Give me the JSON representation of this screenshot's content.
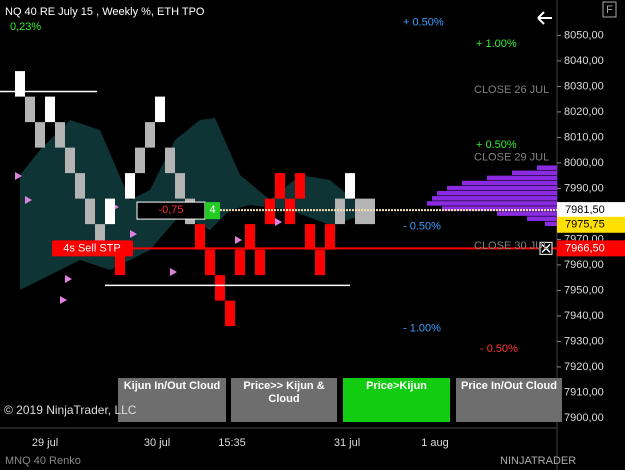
{
  "header": {
    "title": "NQ 40 RE July 15 , Weekly %, ETH TPO",
    "change": "0,23%"
  },
  "chart_data": {
    "type": "renko",
    "ylim": [
      7897,
      8058
    ],
    "yticks": [
      {
        "value": 8050,
        "label": "8050,00"
      },
      {
        "value": 8040,
        "label": "8040,00"
      },
      {
        "value": 8030,
        "label": "8030,00"
      },
      {
        "value": 8020,
        "label": "8020,00"
      },
      {
        "value": 8010,
        "label": "8010,00"
      },
      {
        "value": 8000,
        "label": "8000,00"
      },
      {
        "value": 7990,
        "label": "7990,00"
      },
      {
        "value": 7980,
        "label": "7980,00"
      },
      {
        "value": 7970,
        "label": "7970,00"
      },
      {
        "value": 7960,
        "label": "7960,00"
      },
      {
        "value": 7950,
        "label": "7950,00"
      },
      {
        "value": 7940,
        "label": "7940,00"
      },
      {
        "value": 7930,
        "label": "7930,00"
      },
      {
        "value": 7920,
        "label": "7920,00"
      },
      {
        "value": 7910,
        "label": "7910,00"
      },
      {
        "value": 7900,
        "label": "7900,00"
      }
    ],
    "x_labels": [
      "29 jul",
      "30 jul",
      "15:35",
      "31 jul",
      "1 aug"
    ],
    "bricks": [
      {
        "low": 8026,
        "high": 8036,
        "color": "#ffffff"
      },
      {
        "low": 8016,
        "high": 8026,
        "color": "#b4b4b4"
      },
      {
        "low": 8006,
        "high": 8016,
        "color": "#b4b4b4"
      },
      {
        "low": 8016,
        "high": 8026,
        "color": "#ffffff"
      },
      {
        "low": 8006,
        "high": 8016,
        "color": "#b4b4b4"
      },
      {
        "low": 7996,
        "high": 8006,
        "color": "#b4b4b4"
      },
      {
        "low": 7986,
        "high": 7996,
        "color": "#b4b4b4"
      },
      {
        "low": 7976,
        "high": 7986,
        "color": "#b4b4b4"
      },
      {
        "low": 7966,
        "high": 7976,
        "color": "#b4b4b4"
      },
      {
        "low": 7976,
        "high": 7986,
        "color": "#ffffff"
      },
      {
        "low": 7956,
        "high": 7966,
        "color": "#ff0000"
      },
      {
        "low": 7986,
        "high": 7996,
        "color": "#ffffff"
      },
      {
        "low": 7996,
        "high": 8006,
        "color": "#b4b4b4"
      },
      {
        "low": 8006,
        "high": 8016,
        "color": "#b4b4b4"
      },
      {
        "low": 8016,
        "high": 8026,
        "color": "#ffffff"
      },
      {
        "low": 7996,
        "high": 8006,
        "color": "#b4b4b4"
      },
      {
        "low": 7986,
        "high": 7996,
        "color": "#b4b4b4"
      },
      {
        "low": 7976,
        "high": 7986,
        "color": "#b4b4b4"
      },
      {
        "low": 7966,
        "high": 7976,
        "color": "#ff0000"
      },
      {
        "low": 7956,
        "high": 7966,
        "color": "#ff0000"
      },
      {
        "low": 7946,
        "high": 7956,
        "color": "#ff0000"
      },
      {
        "low": 7936,
        "high": 7946,
        "color": "#ff0000"
      },
      {
        "low": 7956,
        "high": 7966,
        "color": "#ff0000"
      },
      {
        "low": 7966,
        "high": 7976,
        "color": "#ff0000"
      },
      {
        "low": 7956,
        "high": 7966,
        "color": "#ff0000"
      },
      {
        "low": 7976,
        "high": 7986,
        "color": "#ff0000"
      },
      {
        "low": 7986,
        "high": 7996,
        "color": "#ff0000"
      },
      {
        "low": 7976,
        "high": 7986,
        "color": "#ff0000"
      },
      {
        "low": 7986,
        "high": 7996,
        "color": "#ff0000"
      },
      {
        "low": 7966,
        "high": 7976,
        "color": "#ff0000"
      },
      {
        "low": 7956,
        "high": 7966,
        "color": "#ff0000"
      },
      {
        "low": 7966,
        "high": 7976,
        "color": "#ff0000"
      },
      {
        "low": 7976,
        "high": 7986,
        "color": "#b4b4b4"
      },
      {
        "low": 7986,
        "high": 7996,
        "color": "#ffffff"
      },
      {
        "low": 7976,
        "high": 7986,
        "color": "#b4b4b4"
      },
      {
        "low": 7976,
        "high": 7986,
        "color": "#b4b4b4"
      }
    ],
    "reference_lines": [
      {
        "value": 8028,
        "color": "#ffffff"
      },
      {
        "value": 7952,
        "color": "#ffffff"
      }
    ],
    "last_price_line": {
      "value": 7981.5,
      "color": "#f5deb3"
    },
    "price_tags": [
      {
        "value": 7981.5,
        "label": "7981,50",
        "color": "#ffffff",
        "text_color": "#000000"
      },
      {
        "value": 7975.75,
        "label": "7975,75",
        "color": "#ffe000",
        "text_color": "#000000"
      },
      {
        "value": 7966.5,
        "label": "7966,50",
        "color": "#ff0000",
        "text_color": "#ffffff"
      }
    ],
    "level_labels": [
      {
        "value": 8055,
        "label": "+ 0.50%",
        "color": "#3aa0ff"
      },
      {
        "value": 8046.5,
        "label": "+ 1.00%",
        "color": "#33ee33"
      },
      {
        "value": 8028.5,
        "label": "CLOSE 26 JUL",
        "color": "#808080"
      },
      {
        "value": 8007,
        "label": "+ 0.50%",
        "color": "#33ee33"
      },
      {
        "value": 8002,
        "label": "CLOSE 29 JUL",
        "color": "#808080"
      },
      {
        "value": 7975,
        "label": "- 0.50%",
        "color": "#3aa0ff"
      },
      {
        "value": 7967.4,
        "label": "CLOSE 30 JUL",
        "color": "#808080"
      },
      {
        "value": 7935,
        "label": "- 1.00%",
        "color": "#3aa0ff"
      },
      {
        "value": 7927,
        "label": "- 0.50%",
        "color": "#ff3333"
      }
    ],
    "volume_profile": {
      "levels": [
        7998,
        7996,
        7994,
        7992,
        7990,
        7988,
        7986,
        7984,
        7982,
        7980,
        7978,
        7976
      ],
      "values": [
        20,
        45,
        70,
        95,
        110,
        120,
        125,
        130,
        115,
        60,
        30,
        12
      ],
      "color": "#8a2be2"
    },
    "order": {
      "label": "4s Sell STP",
      "value": 7966.5,
      "color": "#ff0000"
    },
    "position": {
      "label": "-0,75",
      "quantity": "4",
      "value": 7981.5
    }
  },
  "buttons": [
    "Kijun In/Out Cloud",
    "Price>> Kijun & Cloud",
    "Price>Kijun",
    "Price In/Out Cloud"
  ],
  "footer": {
    "copyright": "© 2019 NinjaTrader, LLC",
    "instrument": "MNQ 40 Renko",
    "brand": "NINJATRADER",
    "icon": "F"
  }
}
